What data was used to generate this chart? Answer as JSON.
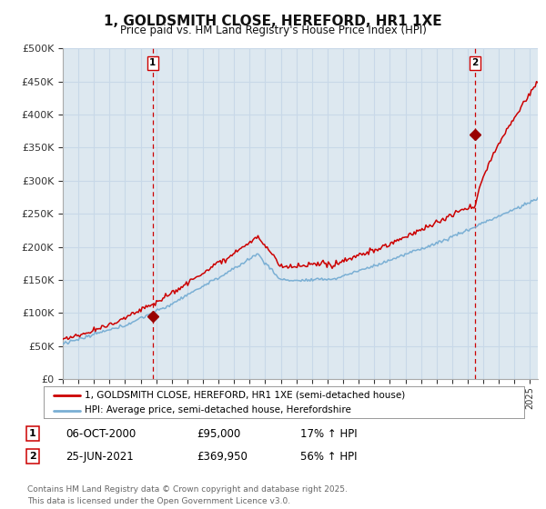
{
  "title": "1, GOLDSMITH CLOSE, HEREFORD, HR1 1XE",
  "subtitle": "Price paid vs. HM Land Registry's House Price Index (HPI)",
  "ylim": [
    0,
    500000
  ],
  "yticks": [
    0,
    50000,
    100000,
    150000,
    200000,
    250000,
    300000,
    350000,
    400000,
    450000,
    500000
  ],
  "ytick_labels": [
    "£0",
    "£50K",
    "£100K",
    "£150K",
    "£200K",
    "£250K",
    "£300K",
    "£350K",
    "£400K",
    "£450K",
    "£500K"
  ],
  "sale1_year": 2000.77,
  "sale1_price": 95000,
  "sale1_label": "1",
  "sale2_year": 2021.48,
  "sale2_price": 369950,
  "sale2_label": "2",
  "red_line_color": "#cc0000",
  "blue_line_color": "#7aafd4",
  "sale_marker_color": "#990000",
  "vline_color": "#cc0000",
  "grid_color": "#c8d8e8",
  "plot_bg_color": "#dde8f0",
  "background_color": "#ffffff",
  "legend_label_red": "1, GOLDSMITH CLOSE, HEREFORD, HR1 1XE (semi-detached house)",
  "legend_label_blue": "HPI: Average price, semi-detached house, Herefordshire",
  "footer": "Contains HM Land Registry data © Crown copyright and database right 2025.\nThis data is licensed under the Open Government Licence v3.0.",
  "table_row1": [
    "1",
    "06-OCT-2000",
    "£95,000",
    "17% ↑ HPI"
  ],
  "table_row2": [
    "2",
    "25-JUN-2021",
    "£369,950",
    "56% ↑ HPI"
  ],
  "xmin": 1995,
  "xmax": 2025.5
}
